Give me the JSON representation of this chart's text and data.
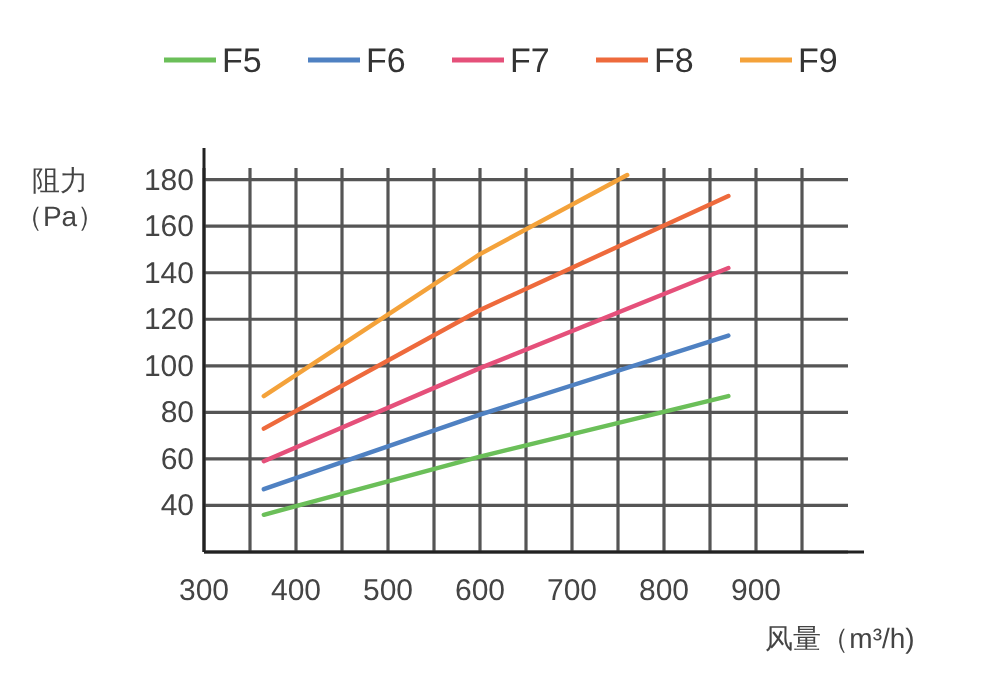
{
  "chart_data": {
    "type": "line",
    "xlabel": "风量（m³/h)",
    "ylabel": "阻力（Pa）",
    "legend": "top",
    "grid": true,
    "xlim": [
      300,
      1000
    ],
    "ylim": [
      20,
      185
    ],
    "xticks": [
      300,
      {
        "value": 350,
        "label": null
      },
      400,
      {
        "value": 450,
        "label": null
      },
      500,
      {
        "value": 550,
        "label": null
      },
      600,
      {
        "value": 650,
        "label": null
      },
      700,
      {
        "value": 750,
        "label": null
      },
      800,
      {
        "value": 850,
        "label": null
      },
      900,
      {
        "value": 950,
        "label": null
      }
    ],
    "yticks": [
      {
        "value": 20,
        "label": null
      },
      40,
      60,
      80,
      100,
      120,
      140,
      160,
      180
    ],
    "series": [
      {
        "name": "F5",
        "color": "#6bbf59",
        "x": [
          365,
          600,
          870
        ],
        "values": [
          36,
          61,
          87
        ]
      },
      {
        "name": "F6",
        "color": "#4f81c2",
        "x": [
          365,
          600,
          870
        ],
        "values": [
          47,
          79,
          113
        ]
      },
      {
        "name": "F7",
        "color": "#e5507a",
        "x": [
          365,
          600,
          870
        ],
        "values": [
          59,
          99,
          142
        ]
      },
      {
        "name": "F8",
        "color": "#ee6a3c",
        "x": [
          365,
          600,
          870
        ],
        "values": [
          73,
          124,
          173
        ]
      },
      {
        "name": "F9",
        "color": "#f4a23a",
        "x": [
          365,
          600,
          760
        ],
        "values": [
          87,
          148,
          182
        ]
      }
    ]
  }
}
